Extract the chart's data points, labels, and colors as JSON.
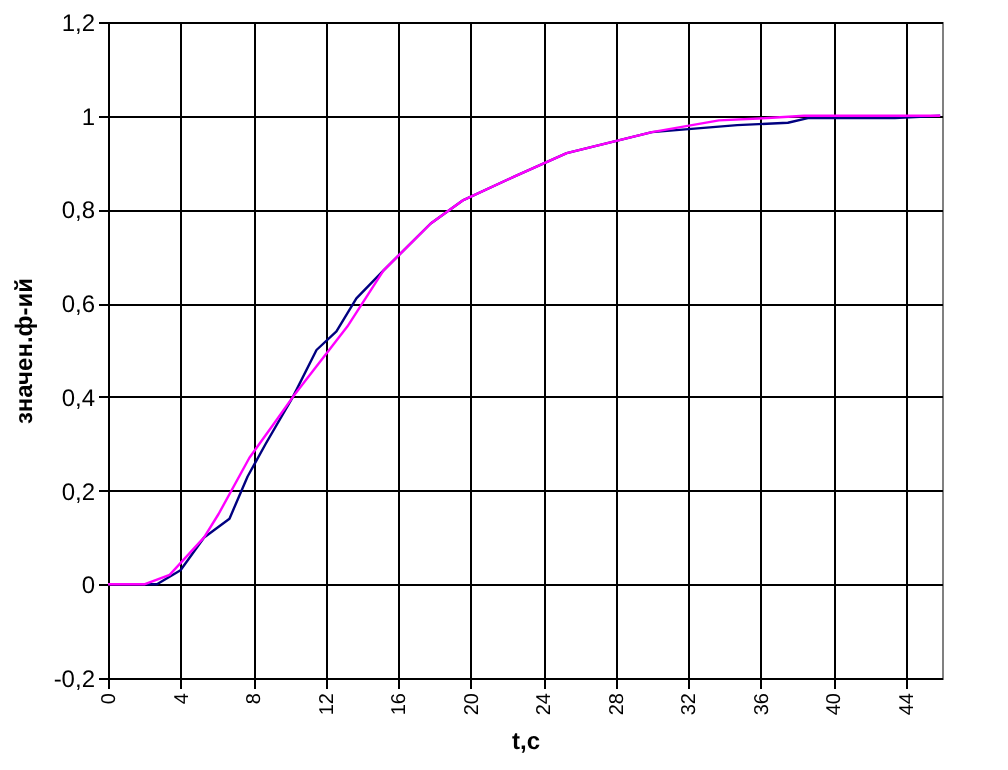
{
  "chart_data": {
    "type": "line",
    "xlabel": "t,c",
    "ylabel": "значен.ф-ий",
    "xlim": [
      0,
      46
    ],
    "xticks": [
      0,
      4,
      8,
      12,
      16,
      20,
      24,
      28,
      32,
      36,
      40,
      44
    ],
    "ylim": [
      -0.2,
      1.2
    ],
    "yticks": [
      {
        "value": -0.2,
        "label": "-0,2"
      },
      0,
      {
        "value": 0.2,
        "label": "0,2"
      },
      {
        "value": 0.4,
        "label": "0,4"
      },
      {
        "value": 0.6,
        "label": "0,6"
      },
      {
        "value": 0.8,
        "label": "0,8"
      },
      1,
      {
        "value": 1.2,
        "label": "1,2"
      }
    ],
    "grid": true,
    "marker": "none",
    "line_style": "solid",
    "series": [
      {
        "color": "#000080",
        "x": [
          0,
          2.7,
          4.0,
          5.3,
          6.7,
          7.7,
          8.7,
          10.2,
          11.5,
          12.6,
          13.7,
          15.2,
          17.8,
          19.6,
          22.4,
          25.3,
          30,
          34.7,
          37.5,
          38.6,
          43.4,
          45.9
        ],
        "values": [
          0,
          0,
          0.03,
          0.1,
          0.14,
          0.23,
          0.3,
          0.4,
          0.5,
          0.54,
          0.61,
          0.67,
          0.77,
          0.82,
          0.87,
          0.92,
          0.965,
          0.98,
          0.985,
          0.995,
          0.995,
          1.0
        ]
      },
      {
        "color": "#ff00ff",
        "x": [
          0,
          2.0,
          3.4,
          5.3,
          6.1,
          7.8,
          9.1,
          10.2,
          12.4,
          13.2,
          15.2,
          17.8,
          19.6,
          22.4,
          25.3,
          30,
          33.7,
          36.4,
          38.4,
          45.9
        ],
        "values": [
          0,
          0,
          0.02,
          0.1,
          0.15,
          0.27,
          0.34,
          0.4,
          0.51,
          0.55,
          0.67,
          0.77,
          0.82,
          0.87,
          0.92,
          0.965,
          0.99,
          0.995,
          1.0,
          1.0
        ]
      }
    ]
  }
}
